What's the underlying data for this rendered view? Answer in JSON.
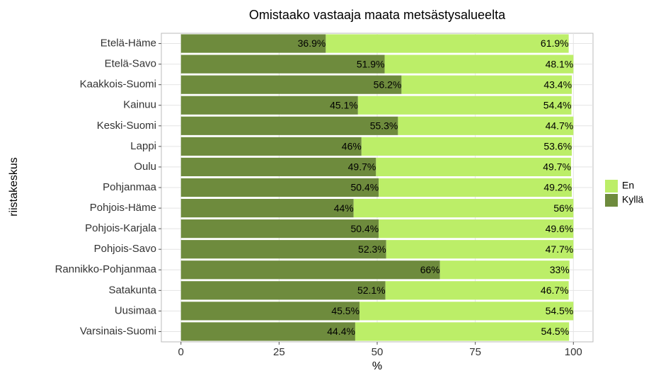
{
  "chart_data": {
    "type": "stacked_barh",
    "title": "Omistaako vastaaja maata metsästysalueelta",
    "x_label": "%",
    "y_label": "riistakeskus",
    "categories": [
      "Etelä-Häme",
      "Etelä-Savo",
      "Kaakkois-Suomi",
      "Kainuu",
      "Keski-Suomi",
      "Lappi",
      "Oulu",
      "Pohjanmaa",
      "Pohjois-Häme",
      "Pohjois-Karjala",
      "Pohjois-Savo",
      "Rannikko-Pohjanmaa",
      "Satakunta",
      "Uusimaa",
      "Varsinais-Suomi"
    ],
    "series": [
      {
        "name": "Kyllä",
        "color": "#6e8b3d",
        "values": [
          36.9,
          51.9,
          56.2,
          45.1,
          55.3,
          46,
          49.7,
          50.4,
          44,
          50.4,
          52.3,
          66,
          52.1,
          45.5,
          44.4
        ],
        "value_labels": [
          "36.9%",
          "51.9%",
          "56.2%",
          "45.1%",
          "55.3%",
          "46%",
          "49.7%",
          "50.4%",
          "44%",
          "50.4%",
          "52.3%",
          "66%",
          "52.1%",
          "45.5%",
          "44.4%"
        ]
      },
      {
        "name": "En",
        "color": "#bcee68",
        "values": [
          61.9,
          48.1,
          43.4,
          54.4,
          44.7,
          53.6,
          49.7,
          49.2,
          56,
          49.6,
          47.7,
          33,
          46.7,
          54.5,
          54.5
        ],
        "value_labels": [
          "61.9%",
          "48.1%",
          "43.4%",
          "54.4%",
          "44.7%",
          "53.6%",
          "49.7%",
          "49.2%",
          "56%",
          "49.6%",
          "47.7%",
          "33%",
          "46.7%",
          "54.5%",
          "54.5%"
        ]
      }
    ],
    "legend_order": [
      "En",
      "Kyllä"
    ],
    "xlim": [
      -5,
      105
    ],
    "xticks": [
      0,
      25,
      50,
      75,
      100
    ],
    "grid": true
  }
}
